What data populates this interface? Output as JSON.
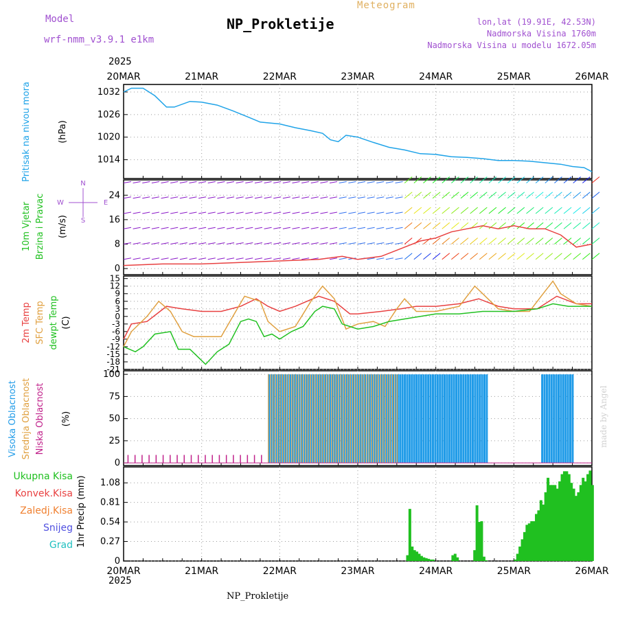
{
  "header": {
    "model_label": "Model",
    "model_name": "wrf-nmm_v3.9.1  e1km",
    "title": "NP_Prokletije",
    "subtitle": "Meteogram",
    "lonlat": "lon,lat (19.91E, 42.53N)",
    "elevation": "Nadmorska Visina 1760m",
    "model_elevation": "Nadmorska Visina u modelu 1672.05m",
    "top_year": "2025",
    "bottom_year": "2025",
    "footer": "NP_Prokletije",
    "watermark": "made by Angel"
  },
  "colors": {
    "pressure": "#1fa3e8",
    "wind_purple": "#8a18c8",
    "temp2m": "#e84040",
    "sfc": "#e0a040",
    "dewpt": "#20c020",
    "high_cloud": "#1f9be8",
    "mid_cloud": "#e0a040",
    "low_cloud": "#c0208a",
    "precip": "#20c020"
  },
  "chart_data": [
    {
      "type": "line",
      "panel": "pressure",
      "ylabel_lines": [
        "Pritisak na nivou mora",
        "(hPa)"
      ],
      "y_ticks": [
        "1014",
        "1020",
        "1026",
        "1032"
      ],
      "ylim": [
        1009,
        1034
      ],
      "x_days": [
        0,
        0.1,
        0.25,
        0.4,
        0.55,
        0.65,
        0.85,
        1.0,
        1.2,
        1.4,
        1.6,
        1.75,
        1.85,
        2.0,
        2.2,
        2.4,
        2.55,
        2.65,
        2.75,
        2.85,
        3.0,
        3.2,
        3.4,
        3.6,
        3.8,
        4.0,
        4.2,
        4.4,
        4.6,
        4.8,
        5.0,
        5.2,
        5.4,
        5.6,
        5.75,
        5.9,
        6.0
      ],
      "values": [
        1032,
        1033,
        1033,
        1031,
        1028,
        1028,
        1029.5,
        1029.3,
        1028.5,
        1027,
        1025.3,
        1024,
        1023.8,
        1023.5,
        1022.5,
        1021.7,
        1021,
        1019.3,
        1018.8,
        1020.5,
        1020,
        1018.6,
        1017.3,
        1016.6,
        1015.6,
        1015.4,
        1014.8,
        1014.6,
        1014.3,
        1013.8,
        1013.8,
        1013.6,
        1013.2,
        1012.8,
        1012.2,
        1011.9,
        1010.8
      ]
    },
    {
      "type": "line",
      "panel": "wind",
      "ylabel_lines": [
        "10m Vjetar",
        "Brzina i Pravac",
        "(m/s)"
      ],
      "compass": {
        "n": "N",
        "w": "W",
        "e": "E",
        "s": "S"
      },
      "y_ticks": [
        "0",
        "8",
        "16",
        "24"
      ],
      "ylim": [
        -2,
        29
      ],
      "x_days": [
        0,
        0.5,
        1.0,
        1.5,
        2.0,
        2.5,
        2.8,
        3.0,
        3.3,
        3.5,
        3.6,
        3.8,
        4.0,
        4.2,
        4.4,
        4.6,
        4.8,
        5.0,
        5.2,
        5.4,
        5.6,
        5.8,
        6.0
      ],
      "speed": [
        1,
        1.5,
        1.5,
        2,
        2.5,
        3,
        4,
        3,
        4,
        6,
        7,
        9,
        10,
        12,
        13,
        14,
        13,
        14,
        13,
        13,
        11,
        7,
        8
      ]
    },
    {
      "type": "line",
      "panel": "temperature",
      "ylabel_lines": [
        "2m Temp",
        "SFC Temp",
        "dewpt Temp",
        "(C)"
      ],
      "y_ticks": [
        "-21",
        "-18",
        "-15",
        "-12",
        "-9",
        "-6",
        "-3",
        "0",
        "3",
        "6",
        "9",
        "12",
        "15"
      ],
      "ylim": [
        -21,
        16
      ],
      "series": [
        {
          "name": "2m Temp",
          "x_days": [
            0,
            0.1,
            0.3,
            0.55,
            0.75,
            1.0,
            1.25,
            1.5,
            1.7,
            1.85,
            2.0,
            2.2,
            2.5,
            2.7,
            2.9,
            3.0,
            3.3,
            3.55,
            3.75,
            4.0,
            4.3,
            4.55,
            4.8,
            5.0,
            5.3,
            5.55,
            5.8,
            6.0
          ],
          "values": [
            -9,
            -3,
            -2,
            4,
            3,
            2,
            2,
            4,
            7,
            4,
            2,
            4,
            8,
            6,
            1,
            1,
            2,
            3,
            4,
            4,
            5,
            7,
            4,
            3,
            3,
            8,
            5,
            5
          ]
        },
        {
          "name": "SFC Temp",
          "x_days": [
            0,
            0.1,
            0.3,
            0.45,
            0.6,
            0.75,
            0.9,
            1.0,
            1.25,
            1.4,
            1.55,
            1.75,
            1.85,
            2.0,
            2.2,
            2.4,
            2.55,
            2.7,
            2.85,
            3.0,
            3.2,
            3.35,
            3.5,
            3.6,
            3.75,
            4.0,
            4.3,
            4.5,
            4.6,
            4.8,
            5.0,
            5.2,
            5.4,
            5.5,
            5.6,
            5.8,
            6.0
          ],
          "values": [
            -12,
            -6,
            0,
            6,
            2,
            -6,
            -8,
            -8,
            -8,
            0,
            8,
            6,
            -2,
            -6,
            -4,
            6,
            12,
            7,
            -5,
            -3,
            -2,
            -4,
            3,
            7,
            2,
            2,
            4,
            12,
            9,
            3,
            2,
            2,
            10,
            14,
            9,
            5,
            4
          ]
        },
        {
          "name": "dewpt Temp",
          "x_days": [
            0,
            0.15,
            0.25,
            0.4,
            0.6,
            0.7,
            0.85,
            0.95,
            1.05,
            1.2,
            1.35,
            1.5,
            1.6,
            1.7,
            1.8,
            1.9,
            2.0,
            2.15,
            2.3,
            2.45,
            2.55,
            2.7,
            2.8,
            3.0,
            3.2,
            3.4,
            3.6,
            4.0,
            4.3,
            4.6,
            5.0,
            5.3,
            5.5,
            5.7,
            6.0
          ],
          "values": [
            -12,
            -14,
            -12,
            -7,
            -6,
            -13,
            -13,
            -16,
            -19,
            -14,
            -11,
            -2,
            -1,
            -2,
            -8,
            -7,
            -9,
            -6,
            -4,
            2,
            4,
            3,
            -3,
            -5,
            -4,
            -2,
            -1,
            1,
            1,
            2,
            2,
            3,
            5,
            4,
            4
          ]
        }
      ]
    },
    {
      "type": "bar",
      "panel": "cloud",
      "ylabel_lines": [
        "Visoka Oblacnost",
        "Srednja Oblacnost",
        "Niska Oblacnost",
        "(%)"
      ],
      "y_ticks": [
        "0",
        "25",
        "50",
        "75",
        "100"
      ],
      "ylim": [
        -3,
        104
      ],
      "segments": [
        {
          "name": "Visoka Oblacnost",
          "from_day": 1.85,
          "to_day": 4.65,
          "value": 100
        },
        {
          "name": "Visoka Oblacnost",
          "from_day": 5.35,
          "to_day": 5.75,
          "value": 100
        },
        {
          "name": "Srednja Oblacnost",
          "from_day": 1.85,
          "to_day": 3.5,
          "value": 100
        },
        {
          "name": "Niska Oblacnost",
          "from_day": 0.05,
          "to_day": 1.85,
          "value": 9
        }
      ]
    },
    {
      "type": "bar",
      "panel": "precip",
      "ylabel_lines": [
        "1hr Precip (mm)"
      ],
      "legend": [
        "Ukupna Kisa",
        "Konvek.Kisa",
        "Zaledj.Kisa",
        "Snijeg",
        "Grad"
      ],
      "y_ticks": [
        "0",
        "0.27",
        "0.54",
        "0.81",
        "1.08"
      ],
      "ylim": [
        0,
        1.3
      ],
      "x_days": [
        3.62,
        3.65,
        3.68,
        3.71,
        3.74,
        3.77,
        3.8,
        3.83,
        3.86,
        3.89,
        3.92,
        3.95,
        4.2,
        4.23,
        4.26,
        4.48,
        4.51,
        4.54,
        4.57,
        4.6,
        4.63,
        5.0,
        5.03,
        5.06,
        5.09,
        5.12,
        5.15,
        5.18,
        5.21,
        5.24,
        5.27,
        5.3,
        5.33,
        5.36,
        5.39,
        5.42,
        5.45,
        5.48,
        5.51,
        5.54,
        5.57,
        5.6,
        5.63,
        5.66,
        5.69,
        5.72,
        5.75,
        5.78,
        5.81,
        5.84,
        5.87,
        5.9,
        5.93,
        5.96,
        5.99
      ],
      "values": [
        0.08,
        0.72,
        0.2,
        0.15,
        0.13,
        0.1,
        0.07,
        0.05,
        0.04,
        0.03,
        0.02,
        0.02,
        0.08,
        0.1,
        0.05,
        0.15,
        0.77,
        0.54,
        0.55,
        0.06,
        0.01,
        0.02,
        0.1,
        0.2,
        0.3,
        0.4,
        0.5,
        0.52,
        0.55,
        0.55,
        0.65,
        0.7,
        0.84,
        0.78,
        0.95,
        1.15,
        1.05,
        1.05,
        1.05,
        1.0,
        1.1,
        1.2,
        1.24,
        1.24,
        1.2,
        1.08,
        1.0,
        0.9,
        0.95,
        1.05,
        1.15,
        1.1,
        1.2,
        1.25,
        1.05
      ]
    }
  ],
  "x_axis": {
    "labels": [
      "20MAR",
      "21MAR",
      "22MAR",
      "23MAR",
      "24MAR",
      "25MAR",
      "26MAR"
    ]
  }
}
